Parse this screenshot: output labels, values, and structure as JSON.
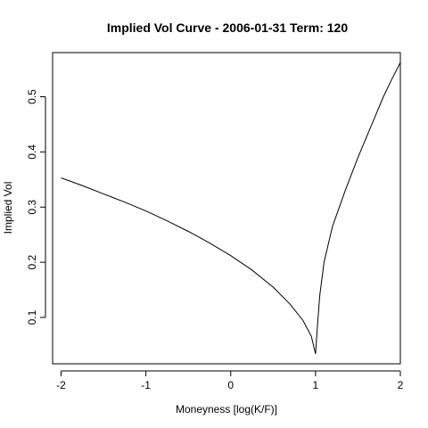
{
  "chart_data": {
    "type": "line",
    "title": "Implied Vol Curve -  2006-01-31 Term: 120",
    "xlabel": "Moneyness [log(K/F)]",
    "ylabel": "Implied Vol",
    "xlim": [
      -2.1,
      2.0
    ],
    "ylim": [
      0.016,
      0.58
    ],
    "x_ticks": [
      -2,
      -1,
      0,
      1,
      2
    ],
    "x_tick_labels": [
      "-2",
      "-1",
      "0",
      "1",
      "2"
    ],
    "y_ticks": [
      0.1,
      0.2,
      0.3,
      0.4,
      0.5
    ],
    "y_tick_labels": [
      "0.1",
      "0.2",
      "0.3",
      "0.4",
      "0.5"
    ],
    "grid": false,
    "legend": "none",
    "line_color": "#000000",
    "series": [
      {
        "x": [
          -2.0,
          -1.75,
          -1.5,
          -1.25,
          -1.0,
          -0.75,
          -0.5,
          -0.25,
          0.0,
          0.25,
          0.5,
          0.7,
          0.85,
          0.95,
          1.0,
          1.02,
          1.05,
          1.1,
          1.2,
          1.35,
          1.5,
          1.65,
          1.8,
          1.9,
          2.0
        ],
        "y": [
          0.353,
          0.339,
          0.324,
          0.309,
          0.293,
          0.275,
          0.256,
          0.235,
          0.212,
          0.186,
          0.155,
          0.124,
          0.095,
          0.066,
          0.034,
          0.08,
          0.14,
          0.2,
          0.265,
          0.33,
          0.39,
          0.445,
          0.5,
          0.532,
          0.562
        ]
      }
    ]
  }
}
